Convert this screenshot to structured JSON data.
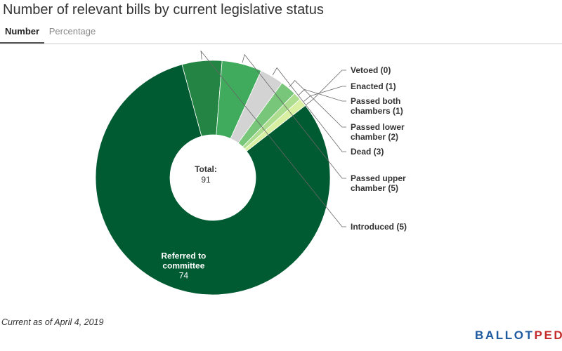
{
  "page": {
    "title": "Number of relevant bills by current legislative status",
    "footnote": "Current as of April 4, 2019",
    "logo": {
      "part1": "BALLOT",
      "part2": "PEDIA"
    }
  },
  "tabs": [
    {
      "label": "Number",
      "active": true
    },
    {
      "label": "Percentage",
      "active": false
    }
  ],
  "chart_data": {
    "type": "pie",
    "donut": true,
    "center_label": {
      "title": "Total:",
      "value": "91"
    },
    "slices": [
      {
        "label": "Referred to committee",
        "value": 74,
        "color": "#005a32",
        "display_lines": [
          "Referred to",
          "committee",
          "74"
        ]
      },
      {
        "label": "Introduced",
        "value": 5,
        "color": "#238443",
        "display_lines": [
          "Introduced (5)"
        ]
      },
      {
        "label": "Passed upper chamber",
        "value": 5,
        "color": "#41ab5d",
        "display_lines": [
          "Passed upper",
          "chamber (5)"
        ]
      },
      {
        "label": "Dead",
        "value": 3,
        "color": "#d3d3d3",
        "display_lines": [
          "Dead (3)"
        ]
      },
      {
        "label": "Passed lower chamber",
        "value": 2,
        "color": "#78c679",
        "display_lines": [
          "Passed lower",
          "chamber (2)"
        ]
      },
      {
        "label": "Passed both chambers",
        "value": 1,
        "color": "#addd8e",
        "display_lines": [
          "Passed both",
          "chambers (1)"
        ]
      },
      {
        "label": "Enacted",
        "value": 1,
        "color": "#d9f0a3",
        "display_lines": [
          "Enacted (1)"
        ]
      },
      {
        "label": "Vetoed",
        "value": 0,
        "color": "#f7fcb9",
        "display_lines": [
          "Vetoed (0)"
        ]
      }
    ]
  }
}
